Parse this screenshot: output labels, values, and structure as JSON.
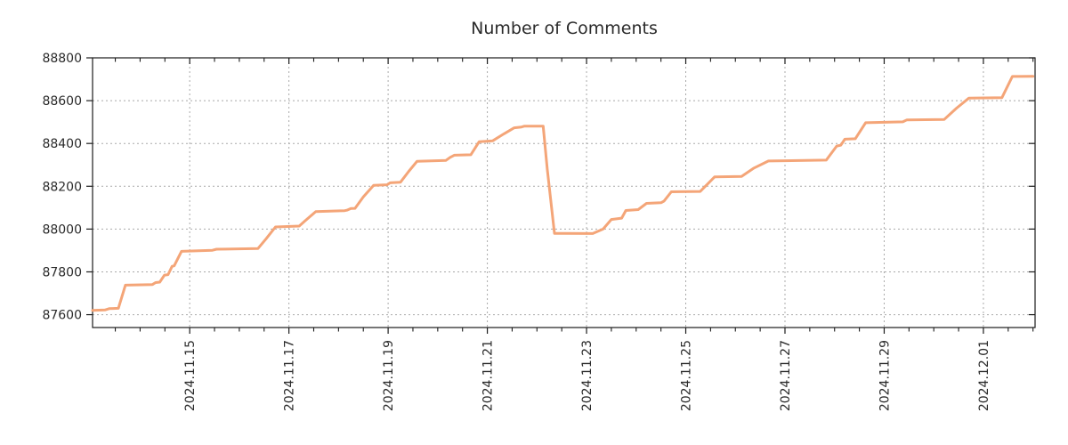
{
  "chart_data": {
    "type": "line",
    "title": "Number of Comments",
    "grid": "dotted",
    "legend": "none",
    "colors": {
      "line": "#f4a578",
      "grid": "#a9a9a9",
      "axis": "#1c1c1c",
      "text": "#2b2b2b",
      "background": "#ffffff"
    },
    "ylabel": "",
    "xlabel": "",
    "ylim": [
      87540,
      88800
    ],
    "y_ticks": [
      {
        "value": 87600,
        "label": "87600"
      },
      {
        "value": 87800,
        "label": "87800"
      },
      {
        "value": 88000,
        "label": "88000"
      },
      {
        "value": 88200,
        "label": "88200"
      },
      {
        "value": 88400,
        "label": "88400"
      },
      {
        "value": 88600,
        "label": "88600"
      },
      {
        "value": 88800,
        "label": "88800"
      }
    ],
    "x_domain_hours": [
      0,
      456
    ],
    "x_minor_tick_every_hours": 12,
    "x_minor_tick_start_hour": 11,
    "x_ticks_major": [
      {
        "t": 47,
        "label": "2024.11.15"
      },
      {
        "t": 95,
        "label": "2024.11.17"
      },
      {
        "t": 143,
        "label": "2024.11.19"
      },
      {
        "t": 191,
        "label": "2024.11.21"
      },
      {
        "t": 239,
        "label": "2024.11.23"
      },
      {
        "t": 287,
        "label": "2024.11.25"
      },
      {
        "t": 335,
        "label": "2024.11.27"
      },
      {
        "t": 383,
        "label": "2024.11.29"
      },
      {
        "t": 431,
        "label": "2024.12.01"
      }
    ],
    "series": [
      {
        "name": "comments",
        "color": "#f4a578",
        "points": [
          [
            0,
            87620
          ],
          [
            6,
            87622
          ],
          [
            8,
            87628
          ],
          [
            12.5,
            87630
          ],
          [
            15.9,
            87738
          ],
          [
            29,
            87741
          ],
          [
            30.5,
            87750
          ],
          [
            32.5,
            87752
          ],
          [
            34.8,
            87785
          ],
          [
            36.5,
            87787
          ],
          [
            38.5,
            87826
          ],
          [
            39.5,
            87828
          ],
          [
            43,
            87896
          ],
          [
            58,
            87901
          ],
          [
            60,
            87906
          ],
          [
            80,
            87909
          ],
          [
            84,
            87955
          ],
          [
            88.5,
            88010
          ],
          [
            100,
            88014
          ],
          [
            103,
            88040
          ],
          [
            108,
            88082
          ],
          [
            122,
            88086
          ],
          [
            123,
            88088
          ],
          [
            125,
            88096
          ],
          [
            127,
            88097
          ],
          [
            131,
            88150
          ],
          [
            136,
            88204
          ],
          [
            142.5,
            88207
          ],
          [
            144,
            88216
          ],
          [
            149,
            88219
          ],
          [
            153,
            88270
          ],
          [
            157,
            88317
          ],
          [
            171,
            88321
          ],
          [
            173,
            88335
          ],
          [
            175,
            88345
          ],
          [
            183,
            88347
          ],
          [
            187,
            88408
          ],
          [
            193.5,
            88412
          ],
          [
            199,
            88445
          ],
          [
            204,
            88473
          ],
          [
            207.5,
            88477
          ],
          [
            209,
            88481
          ],
          [
            218,
            88481
          ],
          [
            220,
            88280
          ],
          [
            223.5,
            87980
          ],
          [
            242,
            87979
          ],
          [
            247,
            88000
          ],
          [
            251,
            88045
          ],
          [
            256,
            88051
          ],
          [
            258,
            88087
          ],
          [
            264,
            88091
          ],
          [
            268,
            88120
          ],
          [
            275,
            88123
          ],
          [
            276.5,
            88131
          ],
          [
            280,
            88174
          ],
          [
            294,
            88176
          ],
          [
            298,
            88215
          ],
          [
            301,
            88244
          ],
          [
            314,
            88246
          ],
          [
            320,
            88285
          ],
          [
            327,
            88318
          ],
          [
            355,
            88322
          ],
          [
            360,
            88388
          ],
          [
            362,
            88392
          ],
          [
            364,
            88420
          ],
          [
            369,
            88422
          ],
          [
            374,
            88497
          ],
          [
            392,
            88501
          ],
          [
            394,
            88510
          ],
          [
            412,
            88512
          ],
          [
            418,
            88565
          ],
          [
            424,
            88612
          ],
          [
            440,
            88614
          ],
          [
            445,
            88713
          ],
          [
            455,
            88714
          ]
        ]
      }
    ]
  }
}
